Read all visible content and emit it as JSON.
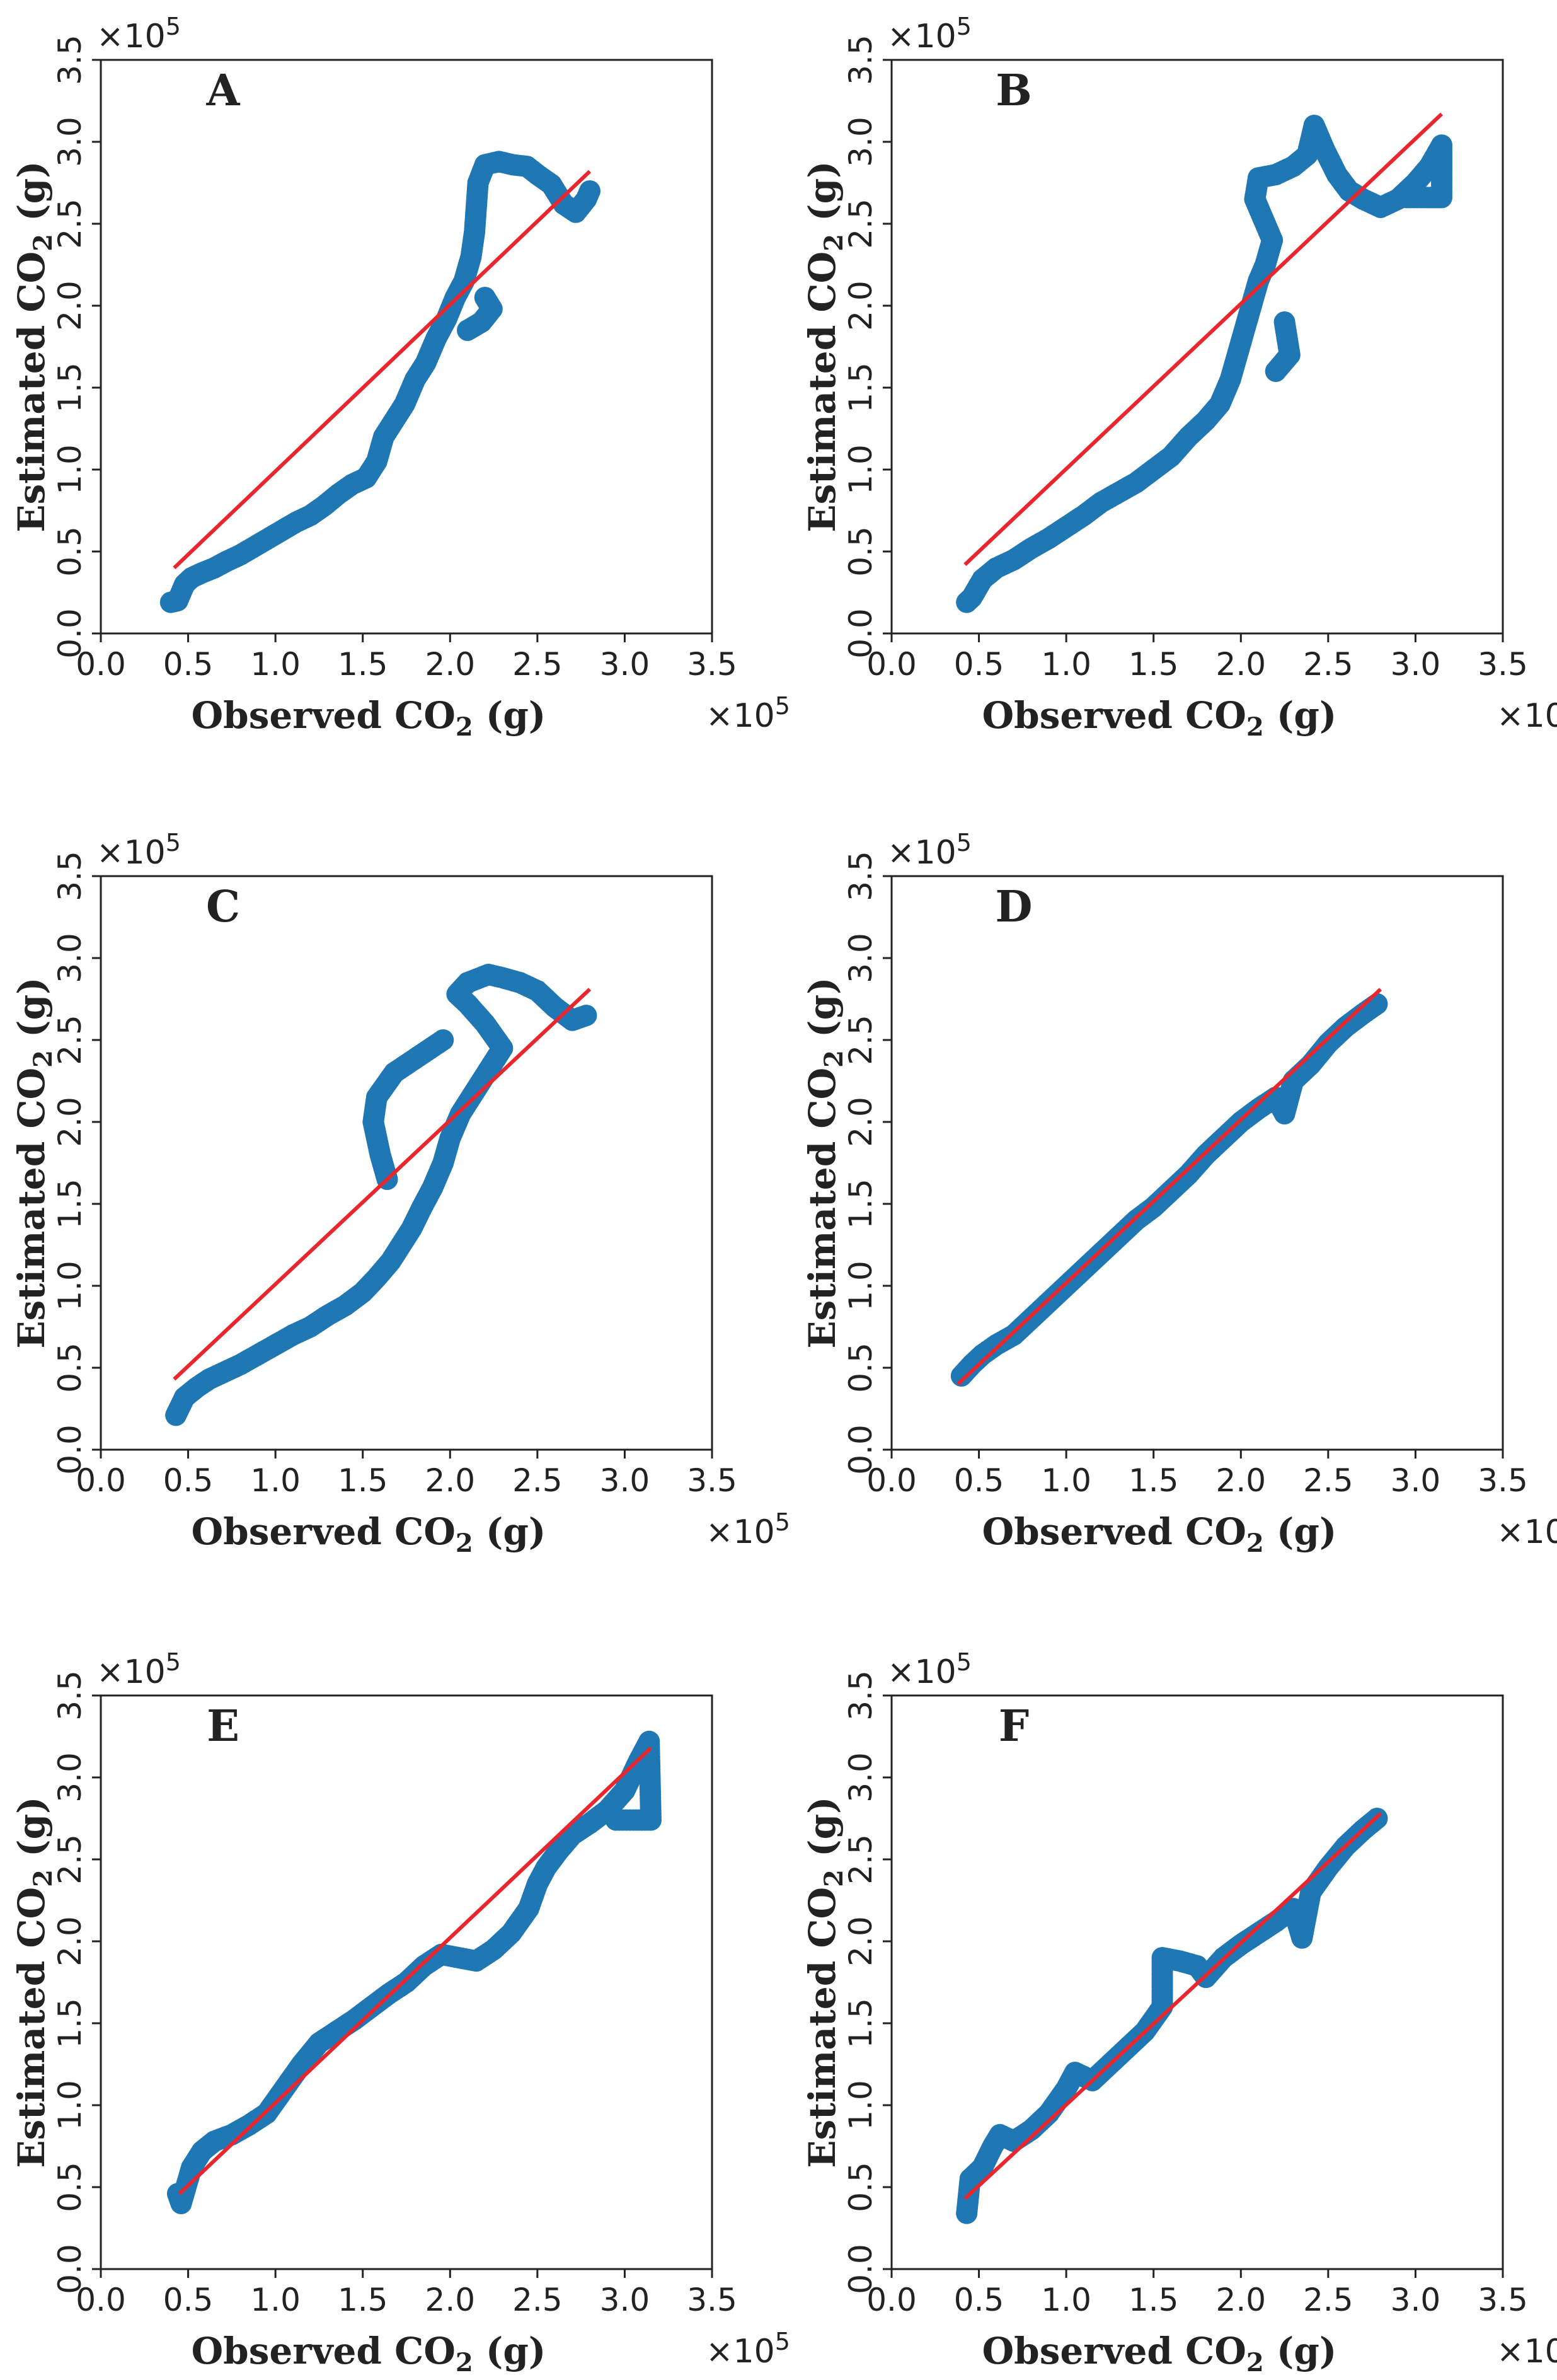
{
  "figure": {
    "layout": "3 rows x 2 columns of scatter plots",
    "point_color": "#1f77b4",
    "fit_color": "#e8262d"
  },
  "chart_data": [
    {
      "type": "scatter",
      "title": "A",
      "xlabel": "Observed CO",
      "xlabel_sub": "2",
      "xlabel_unit": " (g)",
      "ylabel": "Estimated CO",
      "ylabel_sub": "2",
      "ylabel_unit": " (g)",
      "x_multiplier": "×10",
      "y_multiplier": "×10",
      "exponent": "5",
      "xlim": [
        0,
        3.5
      ],
      "ylim": [
        0,
        3.5
      ],
      "xticks": [
        "0.0",
        "0.5",
        "1.0",
        "1.5",
        "2.0",
        "2.5",
        "3.0",
        "3.5"
      ],
      "yticks": [
        "0.0",
        "0.5",
        "1.0",
        "1.5",
        "2.0",
        "2.5",
        "3.0",
        "3.5"
      ],
      "fit_line": [
        [
          0.42,
          0.4
        ],
        [
          2.8,
          2.82
        ]
      ],
      "points": [
        [
          0.4,
          0.19
        ],
        [
          0.44,
          0.2
        ],
        [
          0.48,
          0.3
        ],
        [
          0.52,
          0.34
        ],
        [
          0.58,
          0.37
        ],
        [
          0.65,
          0.4
        ],
        [
          0.72,
          0.44
        ],
        [
          0.8,
          0.48
        ],
        [
          0.88,
          0.53
        ],
        [
          0.96,
          0.58
        ],
        [
          1.04,
          0.63
        ],
        [
          1.12,
          0.68
        ],
        [
          1.2,
          0.72
        ],
        [
          1.28,
          0.78
        ],
        [
          1.36,
          0.85
        ],
        [
          1.44,
          0.91
        ],
        [
          1.52,
          0.95
        ],
        [
          1.58,
          1.05
        ],
        [
          1.62,
          1.2
        ],
        [
          1.68,
          1.3
        ],
        [
          1.74,
          1.4
        ],
        [
          1.8,
          1.55
        ],
        [
          1.86,
          1.65
        ],
        [
          1.92,
          1.8
        ],
        [
          1.98,
          1.92
        ],
        [
          2.03,
          2.05
        ],
        [
          2.08,
          2.15
        ],
        [
          2.12,
          2.3
        ],
        [
          2.14,
          2.45
        ],
        [
          2.15,
          2.6
        ],
        [
          2.16,
          2.75
        ],
        [
          2.2,
          2.86
        ],
        [
          2.28,
          2.88
        ],
        [
          2.36,
          2.86
        ],
        [
          2.44,
          2.85
        ],
        [
          2.5,
          2.8
        ],
        [
          2.58,
          2.74
        ],
        [
          2.65,
          2.62
        ],
        [
          2.72,
          2.57
        ],
        [
          2.78,
          2.65
        ],
        [
          2.8,
          2.7
        ],
        [
          2.2,
          2.05
        ],
        [
          2.24,
          1.98
        ],
        [
          2.18,
          1.9
        ],
        [
          2.1,
          1.85
        ]
      ]
    },
    {
      "type": "scatter",
      "title": "B",
      "xlabel": "Observed CO",
      "xlabel_sub": "2",
      "xlabel_unit": " (g)",
      "ylabel": "Estimated CO",
      "ylabel_sub": "2",
      "ylabel_unit": " (g)",
      "x_multiplier": "×10",
      "y_multiplier": "×10",
      "exponent": "5",
      "xlim": [
        0,
        3.5
      ],
      "ylim": [
        0,
        3.5
      ],
      "xticks": [
        "0.0",
        "0.5",
        "1.0",
        "1.5",
        "2.0",
        "2.5",
        "3.0",
        "3.5"
      ],
      "yticks": [
        "0.0",
        "0.5",
        "1.0",
        "1.5",
        "2.0",
        "2.5",
        "3.0",
        "3.5"
      ],
      "fit_line": [
        [
          0.42,
          0.42
        ],
        [
          3.15,
          3.17
        ]
      ],
      "points": [
        [
          0.43,
          0.19
        ],
        [
          0.46,
          0.22
        ],
        [
          0.52,
          0.33
        ],
        [
          0.6,
          0.4
        ],
        [
          0.7,
          0.45
        ],
        [
          0.8,
          0.52
        ],
        [
          0.9,
          0.58
        ],
        [
          1.0,
          0.65
        ],
        [
          1.1,
          0.72
        ],
        [
          1.2,
          0.8
        ],
        [
          1.3,
          0.86
        ],
        [
          1.4,
          0.92
        ],
        [
          1.5,
          1.0
        ],
        [
          1.6,
          1.08
        ],
        [
          1.7,
          1.2
        ],
        [
          1.8,
          1.3
        ],
        [
          1.88,
          1.4
        ],
        [
          1.94,
          1.55
        ],
        [
          1.98,
          1.7
        ],
        [
          2.02,
          1.85
        ],
        [
          2.06,
          2.0
        ],
        [
          2.1,
          2.15
        ],
        [
          2.14,
          2.25
        ],
        [
          2.18,
          2.4
        ],
        [
          2.08,
          2.65
        ],
        [
          2.1,
          2.78
        ],
        [
          2.2,
          2.8
        ],
        [
          2.3,
          2.85
        ],
        [
          2.38,
          2.92
        ],
        [
          2.42,
          3.1
        ],
        [
          2.48,
          2.95
        ],
        [
          2.55,
          2.8
        ],
        [
          2.62,
          2.7
        ],
        [
          2.7,
          2.65
        ],
        [
          2.8,
          2.6
        ],
        [
          2.9,
          2.65
        ],
        [
          3.0,
          2.75
        ],
        [
          3.08,
          2.85
        ],
        [
          3.15,
          2.98
        ],
        [
          3.15,
          2.66
        ],
        [
          3.05,
          2.66
        ],
        [
          2.95,
          2.66
        ],
        [
          2.25,
          1.9
        ],
        [
          2.28,
          1.7
        ],
        [
          2.2,
          1.6
        ]
      ]
    },
    {
      "type": "scatter",
      "title": "C",
      "xlabel": "Observed CO",
      "xlabel_sub": "2",
      "xlabel_unit": " (g)",
      "ylabel": "Estimated CO",
      "ylabel_sub": "2",
      "ylabel_unit": " (g)",
      "x_multiplier": "×10",
      "y_multiplier": "×10",
      "exponent": "5",
      "xlim": [
        0,
        3.5
      ],
      "ylim": [
        0,
        3.5
      ],
      "xticks": [
        "0.0",
        "0.5",
        "1.0",
        "1.5",
        "2.0",
        "2.5",
        "3.0",
        "3.5"
      ],
      "yticks": [
        "0.0",
        "0.5",
        "1.0",
        "1.5",
        "2.0",
        "2.5",
        "3.0",
        "3.5"
      ],
      "fit_line": [
        [
          0.42,
          0.43
        ],
        [
          2.8,
          2.81
        ]
      ],
      "points": [
        [
          0.43,
          0.21
        ],
        [
          0.48,
          0.32
        ],
        [
          0.55,
          0.38
        ],
        [
          0.62,
          0.43
        ],
        [
          0.7,
          0.47
        ],
        [
          0.8,
          0.52
        ],
        [
          0.9,
          0.58
        ],
        [
          1.0,
          0.64
        ],
        [
          1.1,
          0.7
        ],
        [
          1.2,
          0.75
        ],
        [
          1.3,
          0.82
        ],
        [
          1.4,
          0.88
        ],
        [
          1.5,
          0.96
        ],
        [
          1.58,
          1.05
        ],
        [
          1.66,
          1.15
        ],
        [
          1.72,
          1.25
        ],
        [
          1.78,
          1.35
        ],
        [
          1.84,
          1.48
        ],
        [
          1.9,
          1.6
        ],
        [
          1.96,
          1.75
        ],
        [
          2.0,
          1.9
        ],
        [
          2.06,
          2.05
        ],
        [
          2.12,
          2.15
        ],
        [
          2.18,
          2.25
        ],
        [
          2.24,
          2.35
        ],
        [
          2.3,
          2.45
        ],
        [
          2.2,
          2.6
        ],
        [
          2.1,
          2.72
        ],
        [
          2.04,
          2.78
        ],
        [
          2.1,
          2.85
        ],
        [
          2.22,
          2.9
        ],
        [
          2.3,
          2.88
        ],
        [
          2.4,
          2.85
        ],
        [
          2.5,
          2.8
        ],
        [
          2.6,
          2.7
        ],
        [
          2.7,
          2.62
        ],
        [
          2.78,
          2.65
        ],
        [
          1.96,
          2.5
        ],
        [
          1.82,
          2.4
        ],
        [
          1.68,
          2.3
        ],
        [
          1.58,
          2.15
        ],
        [
          1.56,
          2.0
        ],
        [
          1.6,
          1.8
        ],
        [
          1.64,
          1.65
        ]
      ]
    },
    {
      "type": "scatter",
      "title": "D",
      "xlabel": "Observed CO",
      "xlabel_sub": "2",
      "xlabel_unit": " (g)",
      "ylabel": "Estimated CO",
      "ylabel_sub": "2",
      "ylabel_unit": " (g)",
      "x_multiplier": "×10",
      "y_multiplier": "×10",
      "exponent": "5",
      "xlim": [
        0,
        3.5
      ],
      "ylim": [
        0,
        3.5
      ],
      "xticks": [
        "0.0",
        "0.5",
        "1.0",
        "1.5",
        "2.0",
        "2.5",
        "3.0",
        "3.5"
      ],
      "yticks": [
        "0.0",
        "0.5",
        "1.0",
        "1.5",
        "2.0",
        "2.5",
        "3.0",
        "3.5"
      ],
      "fit_line": [
        [
          0.38,
          0.4
        ],
        [
          2.8,
          2.81
        ]
      ],
      "points": [
        [
          0.4,
          0.45
        ],
        [
          0.46,
          0.52
        ],
        [
          0.52,
          0.58
        ],
        [
          0.6,
          0.64
        ],
        [
          0.7,
          0.7
        ],
        [
          0.8,
          0.8
        ],
        [
          0.9,
          0.9
        ],
        [
          1.0,
          1.0
        ],
        [
          1.1,
          1.1
        ],
        [
          1.2,
          1.2
        ],
        [
          1.3,
          1.3
        ],
        [
          1.4,
          1.4
        ],
        [
          1.5,
          1.48
        ],
        [
          1.6,
          1.58
        ],
        [
          1.7,
          1.68
        ],
        [
          1.8,
          1.8
        ],
        [
          1.9,
          1.9
        ],
        [
          2.0,
          2.0
        ],
        [
          2.1,
          2.08
        ],
        [
          2.2,
          2.15
        ],
        [
          2.25,
          2.05
        ],
        [
          2.3,
          2.25
        ],
        [
          2.4,
          2.35
        ],
        [
          2.5,
          2.48
        ],
        [
          2.6,
          2.58
        ],
        [
          2.7,
          2.66
        ],
        [
          2.78,
          2.72
        ]
      ]
    },
    {
      "type": "scatter",
      "title": "E",
      "xlabel": "Observed CO",
      "xlabel_sub": "2",
      "xlabel_unit": " (g)",
      "ylabel": "Estimated CO",
      "ylabel_sub": "2",
      "ylabel_unit": " (g)",
      "x_multiplier": "×10",
      "y_multiplier": "×10",
      "exponent": "5",
      "xlim": [
        0,
        3.5
      ],
      "ylim": [
        0,
        3.5
      ],
      "xticks": [
        "0.0",
        "0.5",
        "1.0",
        "1.5",
        "2.0",
        "2.5",
        "3.0",
        "3.5"
      ],
      "yticks": [
        "0.0",
        "0.5",
        "1.0",
        "1.5",
        "2.0",
        "2.5",
        "3.0",
        "3.5"
      ],
      "fit_line": [
        [
          0.45,
          0.46
        ],
        [
          3.15,
          3.18
        ]
      ],
      "points": [
        [
          0.44,
          0.46
        ],
        [
          0.46,
          0.4
        ],
        [
          0.52,
          0.62
        ],
        [
          0.58,
          0.72
        ],
        [
          0.65,
          0.78
        ],
        [
          0.75,
          0.82
        ],
        [
          0.85,
          0.88
        ],
        [
          0.95,
          0.95
        ],
        [
          1.05,
          1.1
        ],
        [
          1.15,
          1.25
        ],
        [
          1.25,
          1.38
        ],
        [
          1.35,
          1.45
        ],
        [
          1.45,
          1.52
        ],
        [
          1.55,
          1.6
        ],
        [
          1.65,
          1.68
        ],
        [
          1.75,
          1.75
        ],
        [
          1.85,
          1.85
        ],
        [
          1.95,
          1.92
        ],
        [
          2.05,
          1.9
        ],
        [
          2.15,
          1.88
        ],
        [
          2.25,
          1.95
        ],
        [
          2.35,
          2.05
        ],
        [
          2.45,
          2.2
        ],
        [
          2.5,
          2.35
        ],
        [
          2.55,
          2.45
        ],
        [
          2.62,
          2.55
        ],
        [
          2.7,
          2.65
        ],
        [
          2.8,
          2.72
        ],
        [
          2.9,
          2.8
        ],
        [
          3.0,
          2.92
        ],
        [
          3.08,
          3.1
        ],
        [
          3.14,
          3.22
        ],
        [
          3.15,
          2.74
        ],
        [
          3.05,
          2.74
        ],
        [
          2.95,
          2.74
        ]
      ]
    },
    {
      "type": "scatter",
      "title": "F",
      "xlabel": "Observed CO",
      "xlabel_sub": "2",
      "xlabel_unit": " (g)",
      "ylabel": "Estimated CO",
      "ylabel_sub": "2",
      "ylabel_unit": " (g)",
      "x_multiplier": "×10",
      "y_multiplier": "×10",
      "exponent": "5",
      "xlim": [
        0,
        3.5
      ],
      "ylim": [
        0,
        3.5
      ],
      "xticks": [
        "0.0",
        "0.5",
        "1.0",
        "1.5",
        "2.0",
        "2.5",
        "3.0",
        "3.5"
      ],
      "yticks": [
        "0.0",
        "0.5",
        "1.0",
        "1.5",
        "2.0",
        "2.5",
        "3.0",
        "3.5"
      ],
      "fit_line": [
        [
          0.42,
          0.43
        ],
        [
          2.8,
          2.78
        ]
      ],
      "points": [
        [
          0.43,
          0.34
        ],
        [
          0.45,
          0.55
        ],
        [
          0.52,
          0.62
        ],
        [
          0.58,
          0.75
        ],
        [
          0.62,
          0.82
        ],
        [
          0.7,
          0.78
        ],
        [
          0.8,
          0.85
        ],
        [
          0.9,
          0.95
        ],
        [
          1.0,
          1.1
        ],
        [
          1.05,
          1.2
        ],
        [
          1.15,
          1.15
        ],
        [
          1.25,
          1.25
        ],
        [
          1.35,
          1.35
        ],
        [
          1.45,
          1.45
        ],
        [
          1.55,
          1.6
        ],
        [
          1.55,
          1.9
        ],
        [
          1.65,
          1.88
        ],
        [
          1.75,
          1.85
        ],
        [
          1.8,
          1.78
        ],
        [
          1.9,
          1.9
        ],
        [
          2.0,
          1.98
        ],
        [
          2.1,
          2.05
        ],
        [
          2.2,
          2.12
        ],
        [
          2.3,
          2.2
        ],
        [
          2.35,
          2.02
        ],
        [
          2.4,
          2.3
        ],
        [
          2.5,
          2.45
        ],
        [
          2.6,
          2.58
        ],
        [
          2.7,
          2.68
        ],
        [
          2.78,
          2.75
        ]
      ]
    }
  ]
}
